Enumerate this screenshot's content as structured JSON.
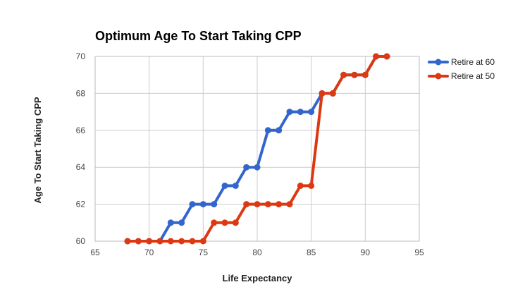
{
  "chart_data": {
    "type": "line",
    "title": "Optimum Age To Start Taking CPP",
    "xlabel": "Life Expectancy",
    "ylabel": "Age To Start Taking CPP",
    "xlim": [
      65,
      95
    ],
    "ylim": [
      60,
      70
    ],
    "xticks": [
      65,
      70,
      75,
      80,
      85,
      90,
      95
    ],
    "yticks": [
      60,
      62,
      64,
      66,
      68,
      70
    ],
    "grid": true,
    "legend_position": "right",
    "series": [
      {
        "name": "Retire at 60",
        "color": "#3366cc",
        "x": [
          68,
          69,
          70,
          71,
          72,
          73,
          74,
          75,
          76,
          77,
          78,
          79,
          80,
          81,
          82,
          83,
          84,
          85,
          86,
          87,
          88,
          89,
          90,
          91,
          92
        ],
        "y": [
          60,
          60,
          60,
          60,
          61,
          61,
          62,
          62,
          62,
          63,
          63,
          64,
          64,
          66,
          66,
          67,
          67,
          67,
          68,
          68,
          69,
          69,
          69,
          70,
          70
        ]
      },
      {
        "name": "Retire at 50",
        "color": "#dc3912",
        "x": [
          68,
          69,
          70,
          71,
          72,
          73,
          74,
          75,
          76,
          77,
          78,
          79,
          80,
          81,
          82,
          83,
          84,
          85,
          86,
          87,
          88,
          89,
          90,
          91,
          92
        ],
        "y": [
          60,
          60,
          60,
          60,
          60,
          60,
          60,
          60,
          61,
          61,
          61,
          62,
          62,
          62,
          62,
          62,
          63,
          63,
          68,
          68,
          69,
          69,
          69,
          70,
          70
        ]
      }
    ]
  }
}
